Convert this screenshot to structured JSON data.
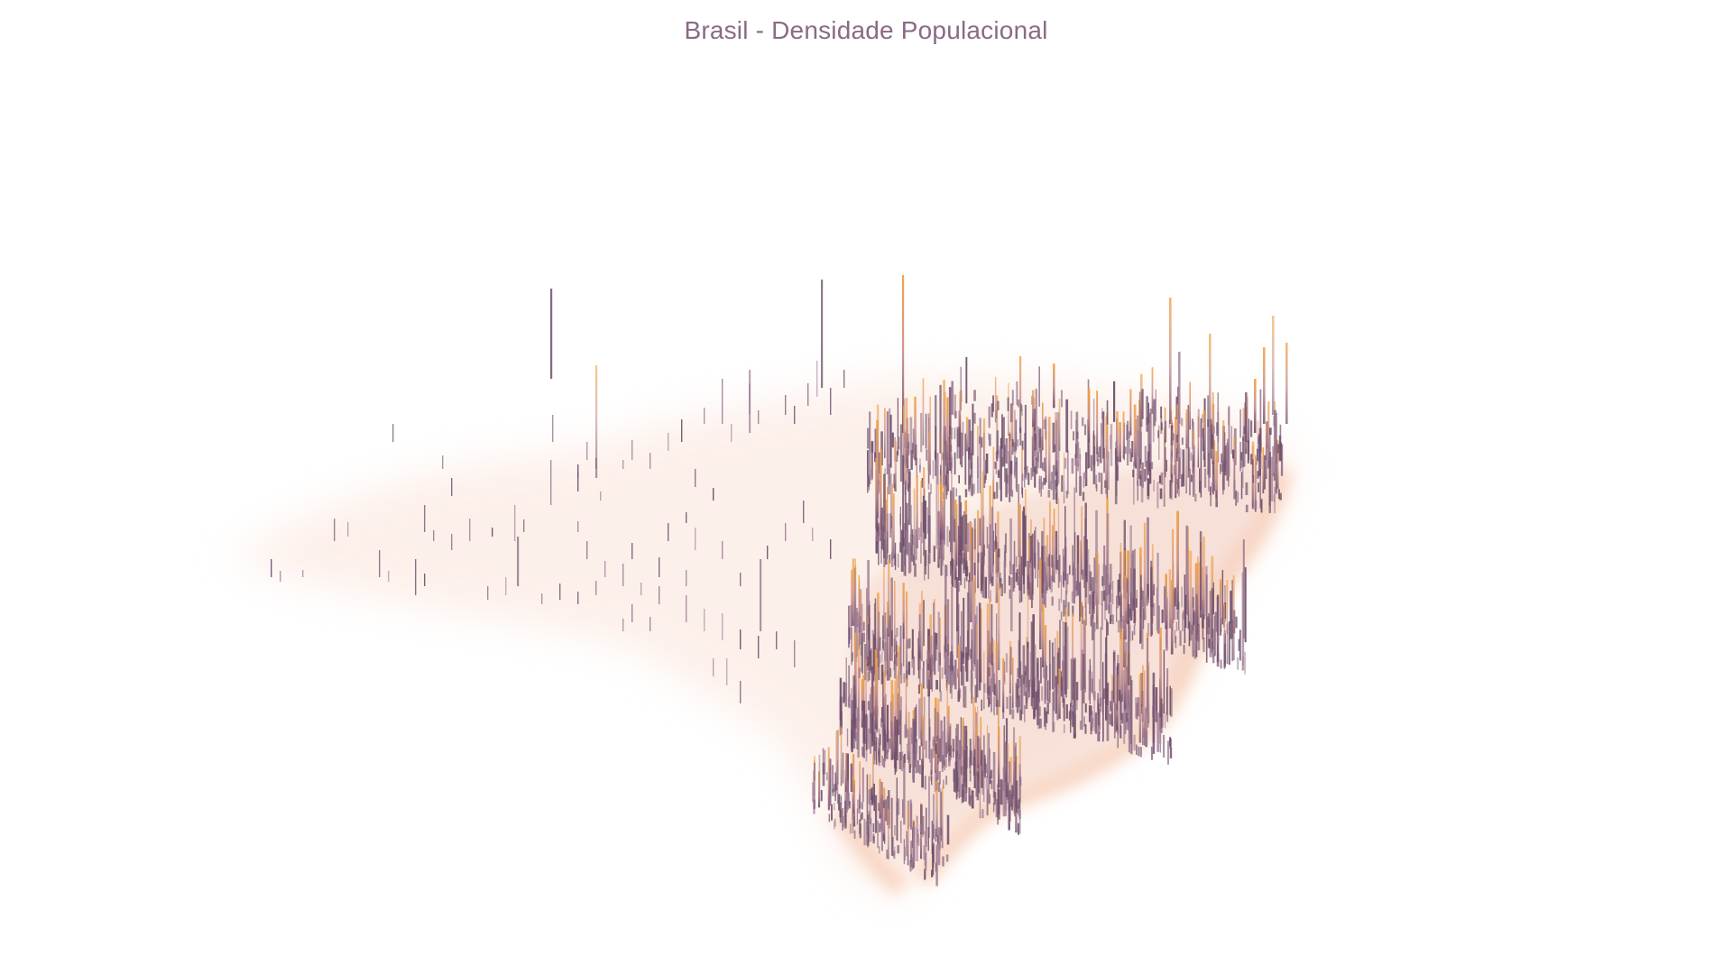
{
  "title": "Brasil - Densidade Populacional",
  "colors": {
    "background": "#ffffff",
    "title": "#8a6a86",
    "spike_dark": "#6f4f6b",
    "spike_light": "#b7939f",
    "spike_peak": "#f2a03c",
    "glow": "#f6c7ad",
    "glow_soft": "#fbe4da"
  }
}
